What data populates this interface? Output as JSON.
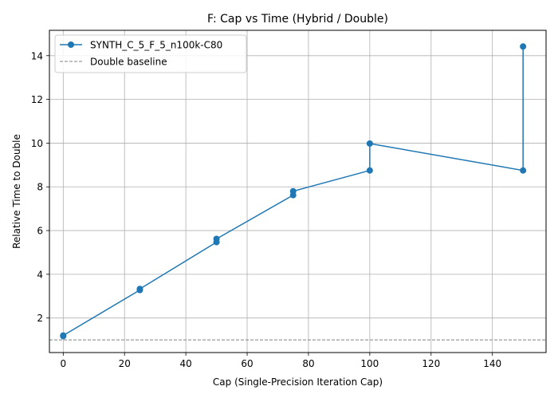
{
  "chart_data": {
    "type": "line",
    "title": "F: Cap vs Time (Hybrid / Double)",
    "xlabel": "Cap (Single-Precision Iteration Cap)",
    "ylabel": "Relative Time to Double",
    "xlim": [
      -4.5,
      157.5
    ],
    "ylim": [
      0.42,
      15.16
    ],
    "xticks": [
      0,
      20,
      40,
      60,
      80,
      100,
      120,
      140
    ],
    "yticks": [
      2,
      4,
      6,
      8,
      10,
      12,
      14
    ],
    "grid": true,
    "legend_position": "upper left",
    "series": [
      {
        "name": "SYNTH_C_5_F_5_n100k-C80",
        "color": "#1f77b4",
        "marker": "circle",
        "points": [
          {
            "x": 0,
            "y": 1.17
          },
          {
            "x": 0,
            "y": 1.2
          },
          {
            "x": 25,
            "y": 3.28
          },
          {
            "x": 25,
            "y": 3.33
          },
          {
            "x": 50,
            "y": 5.47
          },
          {
            "x": 50,
            "y": 5.62
          },
          {
            "x": 75,
            "y": 7.62
          },
          {
            "x": 75,
            "y": 7.8
          },
          {
            "x": 100,
            "y": 8.75
          },
          {
            "x": 100,
            "y": 9.98
          },
          {
            "x": 150,
            "y": 8.75
          },
          {
            "x": 150,
            "y": 14.42
          }
        ]
      }
    ],
    "reference_lines": [
      {
        "name": "Double baseline",
        "y": 1.0,
        "color": "#808080",
        "style": "dashed"
      }
    ]
  }
}
